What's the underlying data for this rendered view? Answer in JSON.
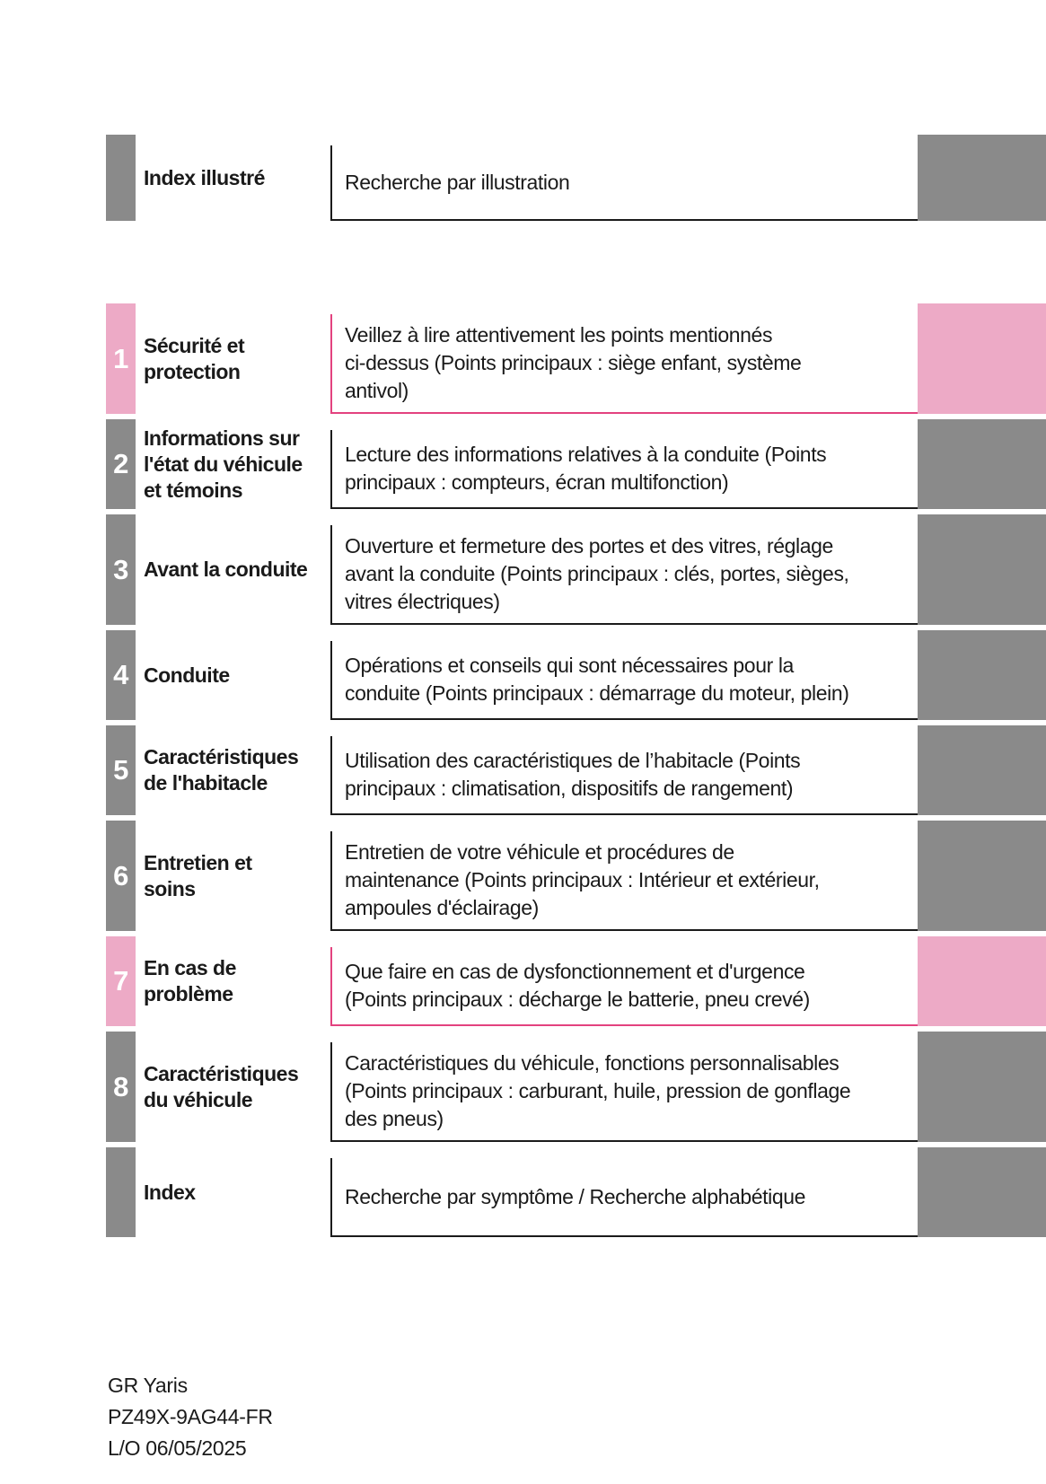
{
  "colors": {
    "gray_tab": "#8a8a8a",
    "pink_tab": "#edaac6",
    "pink_border": "#e3427f",
    "dark_border": "#1b1b1b",
    "text": "#1a1a1a"
  },
  "intro_row": {
    "number": "",
    "title": "Index illustré",
    "description": "Recherche par illustration",
    "color": "gray"
  },
  "sections": [
    {
      "number": "1",
      "title": "Sécurité et\nprotection",
      "description": "Veillez à lire attentivement les points mentionnés\nci-dessus (Points principaux : siège enfant, système\nantivol)",
      "color": "pink"
    },
    {
      "number": "2",
      "title": "Informations sur\nl'état du véhicule\net témoins",
      "description": "Lecture des informations relatives à la conduite (Points\nprincipaux : compteurs, écran multifonction)",
      "color": "gray"
    },
    {
      "number": "3",
      "title": "Avant la conduite",
      "description": "Ouverture et fermeture des portes et des vitres, réglage\navant la conduite (Points principaux : clés, portes, sièges,\nvitres électriques)",
      "color": "gray"
    },
    {
      "number": "4",
      "title": "Conduite",
      "description": "Opérations et conseils qui sont nécessaires pour la\nconduite (Points principaux : démarrage du moteur, plein)",
      "color": "gray"
    },
    {
      "number": "5",
      "title": "Caractéristiques\nde l'habitacle",
      "description": "Utilisation des caractéristiques de l’habitacle (Points\nprincipaux : climatisation, dispositifs de rangement)",
      "color": "gray"
    },
    {
      "number": "6",
      "title": "Entretien et\nsoins",
      "description": "Entretien de votre véhicule et procédures de\nmaintenance (Points principaux : Intérieur et extérieur,\nampoules d'éclairage)",
      "color": "gray"
    },
    {
      "number": "7",
      "title": "En cas de\nproblème",
      "description": "Que faire en cas de dysfonctionnement et d'urgence\n(Points principaux : décharge le batterie, pneu crevé)",
      "color": "pink"
    },
    {
      "number": "8",
      "title": "Caractéristiques\ndu véhicule",
      "description": "Caractéristiques du véhicule, fonctions personnalisables\n(Points principaux : carburant, huile, pression de gonflage\ndes pneus)",
      "color": "gray"
    },
    {
      "number": "",
      "title": "Index",
      "description": "Recherche par symptôme / Recherche alphabétique",
      "color": "gray"
    }
  ],
  "footer": {
    "model": "GR Yaris",
    "part_number": "PZ49X-9AG44-FR",
    "layout_date": "L/O 06/05/2025"
  }
}
